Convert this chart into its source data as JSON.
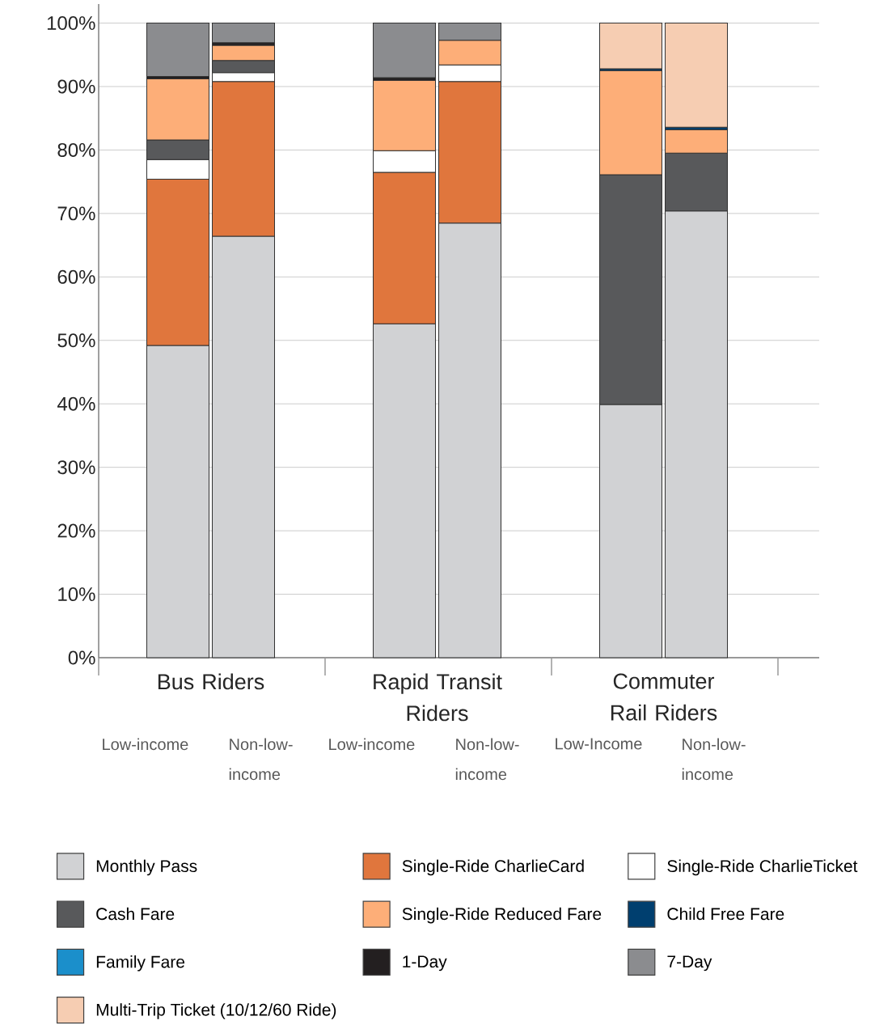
{
  "chart_data": {
    "type": "bar",
    "stacked": true,
    "categories": [
      "Low-income",
      "Non-low-income",
      "Low-income",
      "Non-low-income",
      "Low-Income",
      "Non-low-income"
    ],
    "annotations": [
      "Bus Riders",
      "Rapid Transit Riders",
      "Commuter Rail Riders"
    ],
    "series": [
      {
        "name": "Monthly Pass",
        "color": "#d1d2d4",
        "values": [
          49.2,
          66.4,
          52.6,
          68.5,
          39.9,
          70.4
        ]
      },
      {
        "name": "Single-Ride CharlieCard",
        "color": "#e0763d",
        "values": [
          26.2,
          24.4,
          23.9,
          22.3,
          null,
          null
        ]
      },
      {
        "name": "Single-Ride CharlieTicket",
        "color": "#ffffff",
        "values": [
          3.1,
          1.4,
          3.4,
          2.6,
          null,
          null
        ]
      },
      {
        "name": "Cash Fare",
        "color": "#58595b",
        "values": [
          3.1,
          1.9,
          null,
          null,
          36.2,
          9.1
        ]
      },
      {
        "name": "Single-Ride Reduced Fare",
        "color": "#fdae78",
        "values": [
          9.6,
          2.4,
          11.1,
          3.9,
          16.4,
          3.7
        ]
      },
      {
        "name": "Child Free Fare",
        "color": "#003f6f",
        "values": [
          null,
          null,
          null,
          null,
          0.3,
          0.4
        ]
      },
      {
        "name": "Family Fare",
        "color": "#1b8fcb",
        "values": [
          null,
          null,
          null,
          null,
          null,
          null
        ]
      },
      {
        "name": "1-Day",
        "color": "#231f20",
        "values": [
          0.4,
          0.4,
          0.4,
          null,
          null,
          null
        ]
      },
      {
        "name": "7-Day",
        "color": "#8b8c8f",
        "values": [
          8.4,
          3.1,
          8.6,
          2.7,
          null,
          null
        ]
      },
      {
        "name": "Multi-Trip Ticket (10/12/60 Ride)",
        "color": "#f6cdb2",
        "values": [
          null,
          null,
          null,
          null,
          7.2,
          16.4
        ]
      }
    ],
    "ylim": [
      0,
      103
    ],
    "yticks": [
      {
        "value": 0,
        "label": "0%"
      },
      {
        "value": 10,
        "label": "10%"
      },
      {
        "value": 20,
        "label": "20%"
      },
      {
        "value": 30,
        "label": "30%"
      },
      {
        "value": 40,
        "label": "40%"
      },
      {
        "value": 50,
        "label": "50%"
      },
      {
        "value": 60,
        "label": "60%"
      },
      {
        "value": 70,
        "label": "70%"
      },
      {
        "value": 80,
        "label": "80%"
      },
      {
        "value": 90,
        "label": "90%"
      },
      {
        "value": 100,
        "label": "100%"
      }
    ],
    "grid": "y",
    "legend": "bottom"
  }
}
